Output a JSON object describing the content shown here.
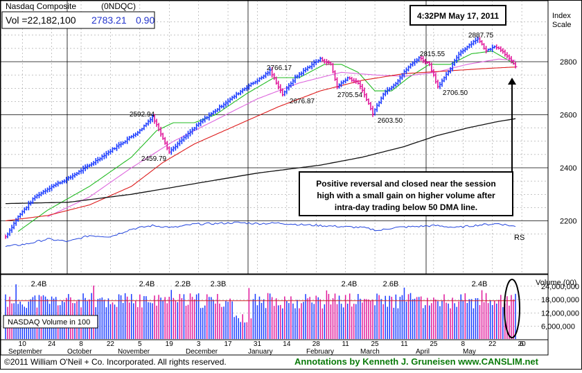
{
  "header": {
    "name": "Nasdaq Composite",
    "ticker": "(0NDQC)",
    "vol_label": "Vol =22,182,100",
    "price": "2783.21",
    "change": "0.90"
  },
  "timestamp": "4:32PM May 17, 2011",
  "index_scale_label": [
    "Index",
    "Scale"
  ],
  "annotation_box": [
    "Positive reversal and closed near the session",
    "high with a small gain on higher volume after",
    "intra-day trading below 50 DMA line."
  ],
  "rs_label": "RS",
  "volume_legend": "NASDAQ Volume in 100",
  "volume_axis_title": "Volume (00)",
  "footer": {
    "copyright": "©2011 William O'Neil + Co. Incorporated. All rights reserved.",
    "credit": "Annotations by Kenneth J. Gruneisen  www.CANSLIM.net"
  },
  "colors": {
    "up_bar": "#1a3bff",
    "down_bar": "#e0179a",
    "ma50": "#22bb22",
    "ma_mid": "#dd66dd",
    "ma200_red": "#dd1a1a",
    "ma_long": "#111111",
    "rs_line": "#2244dd",
    "vol_avg": "#cc2222",
    "footer_credit": "#0a7a0a"
  },
  "chart_data": [
    {
      "type": "line",
      "subtype": "ohlc-price",
      "title": "Nasdaq Composite",
      "y_ticks": [
        2200,
        2400,
        2600,
        2800
      ],
      "ylim": [
        2110,
        2960
      ],
      "x_tick_labels": [
        "10",
        "24",
        "8",
        "22",
        "5",
        "19",
        "3",
        "17",
        "31",
        "14",
        "28",
        "11",
        "25",
        "11",
        "25",
        "8",
        "22",
        "6",
        "20"
      ],
      "month_labels": [
        "September",
        "October",
        "November",
        "December",
        "January",
        "February",
        "March",
        "April",
        "May"
      ],
      "grid": true,
      "peak_labels": [
        {
          "label": "2592.94",
          "value": 2592.94
        },
        {
          "label": "2459.79",
          "value": 2459.79
        },
        {
          "label": "2766.17",
          "value": 2766.17
        },
        {
          "label": "2676.87",
          "value": 2676.87
        },
        {
          "label": "2705.54",
          "value": 2705.54
        },
        {
          "label": "2603.50",
          "value": 2603.5
        },
        {
          "label": "2815.55",
          "value": 2815.55
        },
        {
          "label": "2706.50",
          "value": 2706.5
        },
        {
          "label": "2887.75",
          "value": 2887.75
        }
      ],
      "price_path_keypoints": [
        [
          0,
          2140
        ],
        [
          6,
          2215
        ],
        [
          14,
          2290
        ],
        [
          22,
          2330
        ],
        [
          30,
          2360
        ],
        [
          40,
          2410
        ],
        [
          52,
          2475
        ],
        [
          64,
          2540
        ],
        [
          70,
          2592.94
        ],
        [
          74,
          2530
        ],
        [
          78,
          2459.79
        ],
        [
          86,
          2520
        ],
        [
          94,
          2580
        ],
        [
          104,
          2640
        ],
        [
          114,
          2700
        ],
        [
          122,
          2740
        ],
        [
          126,
          2766.17
        ],
        [
          132,
          2676.87
        ],
        [
          138,
          2740
        ],
        [
          146,
          2790
        ],
        [
          150,
          2810
        ],
        [
          155,
          2790
        ],
        [
          158,
          2705.54
        ],
        [
          163,
          2740
        ],
        [
          168,
          2720
        ],
        [
          172,
          2660
        ],
        [
          175,
          2603.5
        ],
        [
          180,
          2680
        ],
        [
          186,
          2720
        ],
        [
          192,
          2780
        ],
        [
          197,
          2815.55
        ],
        [
          202,
          2790
        ],
        [
          206,
          2706.5
        ],
        [
          211,
          2760
        ],
        [
          216,
          2830
        ],
        [
          222,
          2870
        ],
        [
          225,
          2887.75
        ],
        [
          229,
          2840
        ],
        [
          233,
          2860
        ],
        [
          237,
          2840
        ],
        [
          241,
          2800
        ],
        [
          243,
          2783.21
        ]
      ],
      "series": [
        {
          "name": "50-day MA",
          "color_key": "ma50",
          "keypoints": [
            [
              6,
              2160
            ],
            [
              20,
              2240
            ],
            [
              40,
              2330
            ],
            [
              60,
              2440
            ],
            [
              72,
              2540
            ],
            [
              80,
              2570
            ],
            [
              90,
              2570
            ],
            [
              100,
              2600
            ],
            [
              115,
              2680
            ],
            [
              128,
              2740
            ],
            [
              140,
              2740
            ],
            [
              152,
              2790
            ],
            [
              160,
              2790
            ],
            [
              168,
              2760
            ],
            [
              176,
              2690
            ],
            [
              184,
              2690
            ],
            [
              192,
              2740
            ],
            [
              202,
              2790
            ],
            [
              212,
              2790
            ],
            [
              222,
              2830
            ],
            [
              232,
              2840
            ],
            [
              243,
              2790
            ]
          ]
        },
        {
          "name": "moving average (magenta)",
          "color_key": "ma_mid",
          "keypoints": [
            [
              20,
              2215
            ],
            [
              40,
              2290
            ],
            [
              60,
              2400
            ],
            [
              80,
              2500
            ],
            [
              100,
              2580
            ],
            [
              120,
              2660
            ],
            [
              140,
              2720
            ],
            [
              160,
              2760
            ],
            [
              176,
              2750
            ],
            [
              190,
              2745
            ],
            [
              205,
              2760
            ],
            [
              220,
              2790
            ],
            [
              235,
              2810
            ],
            [
              243,
              2805
            ]
          ]
        },
        {
          "name": "200-day MA",
          "color_key": "ma200_red",
          "keypoints": [
            [
              0,
              2200
            ],
            [
              20,
              2220
            ],
            [
              40,
              2260
            ],
            [
              60,
              2330
            ],
            [
              75,
              2420
            ],
            [
              90,
              2490
            ],
            [
              110,
              2560
            ],
            [
              130,
              2630
            ],
            [
              150,
              2690
            ],
            [
              170,
              2730
            ],
            [
              190,
              2755
            ],
            [
              210,
              2765
            ],
            [
              230,
              2775
            ],
            [
              243,
              2780
            ]
          ]
        },
        {
          "name": "long-term MA",
          "color_key": "ma_long",
          "keypoints": [
            [
              0,
              2265
            ],
            [
              30,
              2270
            ],
            [
              60,
              2300
            ],
            [
              90,
              2340
            ],
            [
              120,
              2380
            ],
            [
              150,
              2410
            ],
            [
              170,
              2440
            ],
            [
              190,
              2480
            ],
            [
              205,
              2520
            ],
            [
              220,
              2550
            ],
            [
              235,
              2575
            ],
            [
              243,
              2585
            ]
          ]
        }
      ]
    },
    {
      "type": "line",
      "subtype": "relative-strength",
      "name": "RS",
      "keypoints": [
        [
          0,
          20
        ],
        [
          10,
          25
        ],
        [
          20,
          35
        ],
        [
          30,
          30
        ],
        [
          40,
          42
        ],
        [
          50,
          40
        ],
        [
          60,
          55
        ],
        [
          70,
          62
        ],
        [
          80,
          58
        ],
        [
          90,
          65
        ],
        [
          100,
          66
        ],
        [
          110,
          68
        ],
        [
          120,
          66
        ],
        [
          130,
          67
        ],
        [
          140,
          64
        ],
        [
          150,
          62
        ],
        [
          160,
          60
        ],
        [
          170,
          58
        ],
        [
          178,
          52
        ],
        [
          185,
          58
        ],
        [
          195,
          60
        ],
        [
          205,
          62
        ],
        [
          215,
          58
        ],
        [
          225,
          63
        ],
        [
          235,
          66
        ],
        [
          243,
          60
        ]
      ]
    },
    {
      "type": "bar",
      "subtype": "volume",
      "title": "Volume (00)",
      "y_ticks": [
        "24,000,000",
        "18,000,000",
        "12,000,000",
        "6,000,000"
      ],
      "ylim": [
        0,
        28000000
      ],
      "labels": [
        {
          "label": "2.4B",
          "value": 24000000
        },
        {
          "label": "2.4B",
          "value": 24000000
        },
        {
          "label": "2.2B",
          "value": 22000000
        },
        {
          "label": "2.3B",
          "value": 23000000
        },
        {
          "label": "2.4B",
          "value": 24000000
        },
        {
          "label": "2.6B",
          "value": 26000000
        },
        {
          "label": "2.4B",
          "value": 24000000
        }
      ],
      "average_level": 17500000
    }
  ]
}
